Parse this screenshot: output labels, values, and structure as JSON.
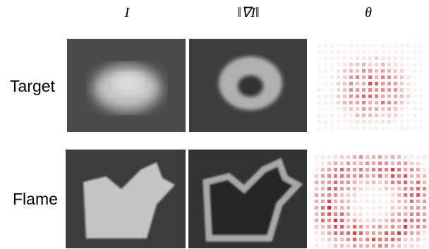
{
  "columns": [
    "I",
    "‖∇I‖",
    "θ"
  ],
  "rows": [
    "Target",
    "Flame"
  ]
}
